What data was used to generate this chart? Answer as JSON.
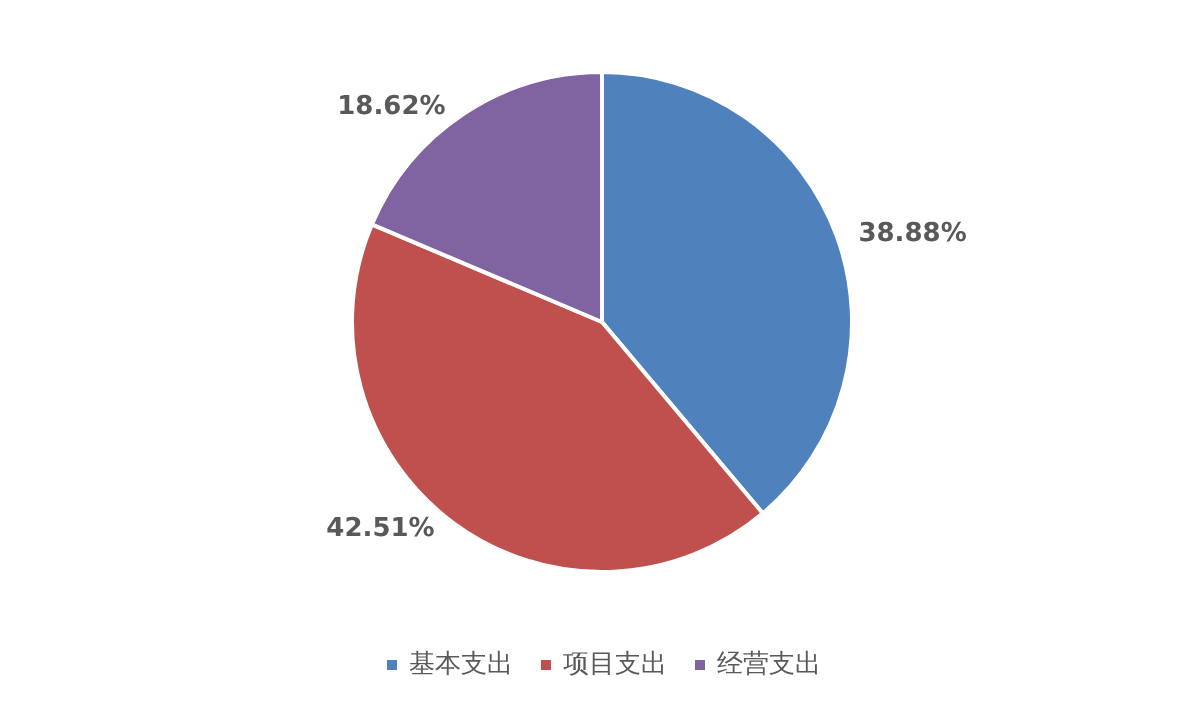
{
  "chart_data": {
    "type": "pie",
    "categories": [
      "基本支出",
      "项目支出",
      "经营支出"
    ],
    "values": [
      38.88,
      42.51,
      18.62
    ],
    "colors": [
      "#4f81bd",
      "#c0504d",
      "#8064a2"
    ],
    "value_labels": [
      "38.88%",
      "42.51%",
      "18.62%"
    ],
    "legend": "bottom"
  }
}
